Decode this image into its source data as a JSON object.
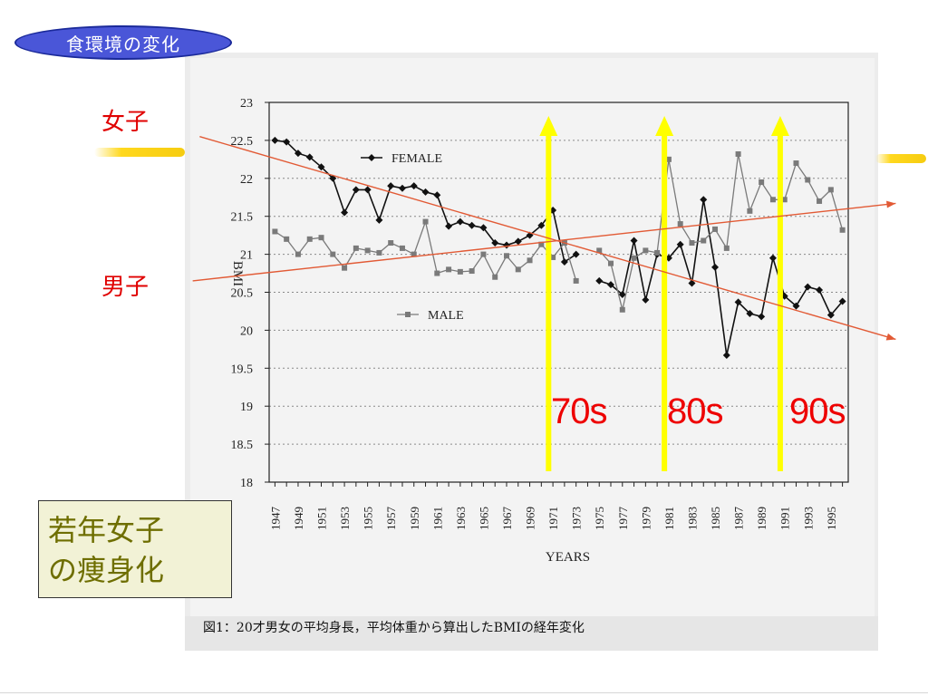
{
  "slide": {
    "title": "食環境の変化",
    "female_label": "女子",
    "male_label": "男子",
    "decade_labels": [
      "70s",
      "80s",
      "90s"
    ],
    "summary_lines": [
      "若年女子",
      "の痩身化"
    ],
    "caption": "図1：20才男女の平均身長，平均体重から算出したBMIの経年変化"
  },
  "colors": {
    "title_fill": "#4a56d8",
    "label_red": "#e00000",
    "arrow_yellow": "#ffff00",
    "trend_line": "#e25a35",
    "summary_text": "#6e6e00"
  },
  "chart_data": {
    "type": "line",
    "xlabel": "YEARS",
    "ylabel": "BMI",
    "ylim": [
      18,
      23
    ],
    "yticks": [
      "18",
      "18.5",
      "19",
      "19.5",
      "20",
      "20.5",
      "21",
      "21.5",
      "22",
      "22.5",
      "23"
    ],
    "xticks": [
      "1947",
      "1949",
      "1951",
      "1953",
      "1955",
      "1957",
      "1959",
      "1961",
      "1963",
      "1965",
      "1967",
      "1969",
      "1971",
      "1973",
      "1975",
      "1977",
      "1979",
      "1981",
      "1983",
      "1985",
      "1987",
      "1989",
      "1991",
      "1993",
      "1995"
    ],
    "grid": true,
    "legend_position": "upper-left",
    "series": [
      {
        "name": "FEMALE",
        "marker": "diamond",
        "segments": [
          [
            [
              1947,
              22.5
            ],
            [
              1948,
              22.48
            ],
            [
              1949,
              22.33
            ],
            [
              1950,
              22.28
            ],
            [
              1951,
              22.15
            ],
            [
              1952,
              22.0
            ],
            [
              1953,
              21.55
            ],
            [
              1954,
              21.85
            ],
            [
              1955,
              21.85
            ],
            [
              1956,
              21.45
            ],
            [
              1957,
              21.9
            ],
            [
              1958,
              21.87
            ],
            [
              1959,
              21.9
            ],
            [
              1960,
              21.82
            ],
            [
              1961,
              21.78
            ],
            [
              1962,
              21.37
            ],
            [
              1963,
              21.43
            ],
            [
              1964,
              21.38
            ],
            [
              1965,
              21.35
            ],
            [
              1966,
              21.15
            ],
            [
              1967,
              21.12
            ],
            [
              1968,
              21.17
            ],
            [
              1969,
              21.25
            ],
            [
              1970,
              21.38
            ],
            [
              1971,
              21.58
            ],
            [
              1972,
              20.9
            ],
            [
              1973,
              21.0
            ]
          ],
          [
            [
              1975,
              20.65
            ],
            [
              1976,
              20.6
            ],
            [
              1977,
              20.47
            ],
            [
              1978,
              21.18
            ],
            [
              1979,
              20.4
            ],
            [
              1980,
              21.0
            ],
            [
              1981,
              20.95
            ],
            [
              1982,
              21.13
            ],
            [
              1983,
              20.62
            ],
            [
              1984,
              21.72
            ],
            [
              1985,
              20.83
            ],
            [
              1986,
              19.67
            ],
            [
              1987,
              20.37
            ],
            [
              1988,
              20.22
            ],
            [
              1989,
              20.18
            ],
            [
              1990,
              20.95
            ],
            [
              1991,
              20.45
            ],
            [
              1992,
              20.32
            ],
            [
              1993,
              20.57
            ],
            [
              1994,
              20.53
            ],
            [
              1995,
              20.2
            ],
            [
              1996,
              20.38
            ]
          ]
        ]
      },
      {
        "name": "MALE",
        "marker": "square",
        "segments": [
          [
            [
              1947,
              21.3
            ],
            [
              1948,
              21.2
            ],
            [
              1949,
              21.0
            ],
            [
              1950,
              21.2
            ],
            [
              1951,
              21.22
            ],
            [
              1952,
              21.0
            ],
            [
              1953,
              20.82
            ],
            [
              1954,
              21.08
            ],
            [
              1955,
              21.05
            ],
            [
              1956,
              21.02
            ],
            [
              1957,
              21.15
            ],
            [
              1958,
              21.08
            ],
            [
              1959,
              21.0
            ],
            [
              1960,
              21.43
            ],
            [
              1961,
              20.75
            ],
            [
              1962,
              20.8
            ],
            [
              1963,
              20.77
            ],
            [
              1964,
              20.78
            ],
            [
              1965,
              21.0
            ],
            [
              1966,
              20.7
            ],
            [
              1967,
              20.98
            ],
            [
              1968,
              20.8
            ],
            [
              1969,
              20.92
            ],
            [
              1970,
              21.13
            ],
            [
              1971,
              20.96
            ],
            [
              1972,
              21.15
            ],
            [
              1973,
              20.65
            ]
          ],
          [
            [
              1975,
              21.05
            ],
            [
              1976,
              20.88
            ],
            [
              1977,
              20.27
            ],
            [
              1978,
              20.95
            ],
            [
              1979,
              21.05
            ],
            [
              1980,
              21.02
            ],
            [
              1981,
              22.25
            ],
            [
              1982,
              21.4
            ],
            [
              1983,
              21.15
            ],
            [
              1984,
              21.18
            ],
            [
              1985,
              21.33
            ],
            [
              1986,
              21.08
            ],
            [
              1987,
              22.32
            ],
            [
              1988,
              21.57
            ],
            [
              1989,
              21.95
            ],
            [
              1990,
              21.72
            ],
            [
              1991,
              21.72
            ],
            [
              1992,
              22.2
            ],
            [
              1993,
              21.98
            ],
            [
              1994,
              21.7
            ],
            [
              1995,
              21.85
            ],
            [
              1996,
              21.32
            ]
          ]
        ]
      }
    ],
    "annotations": {
      "decade_arrows_at": [
        1970,
        1980,
        1990
      ],
      "trend_lines": [
        {
          "label": "女子",
          "from": [
            1940.5,
            22.55
          ],
          "to": [
            2000.6,
            19.88
          ]
        },
        {
          "label": "男子",
          "from": [
            1939.9,
            20.65
          ],
          "to": [
            2000.6,
            21.67
          ]
        }
      ]
    }
  }
}
